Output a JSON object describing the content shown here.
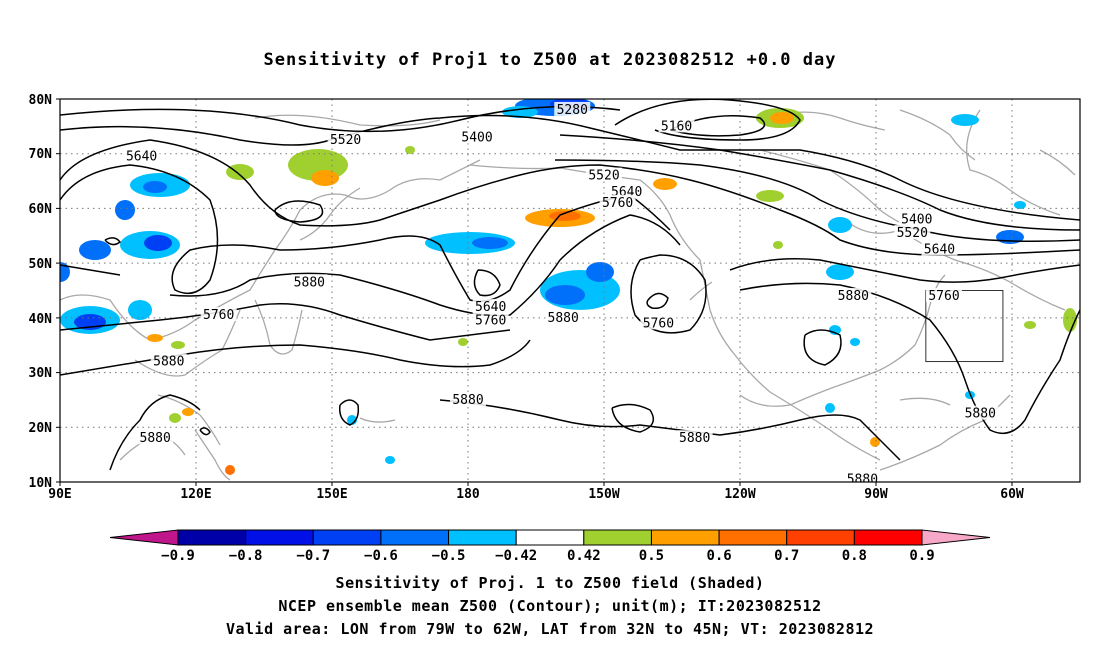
{
  "title": "Sensitivity of Proj1 to Z500 at 2023082512 +0.0 day",
  "lat_labels": [
    "80N",
    "70N",
    "60N",
    "50N",
    "40N",
    "30N",
    "20N",
    "10N"
  ],
  "lon_labels": [
    "90E",
    "120E",
    "150E",
    "180",
    "150W",
    "120W",
    "90W",
    "60W"
  ],
  "contour_labels": [
    {
      "text": "5640",
      "lon": 108,
      "lat": 69.5
    },
    {
      "text": "5520",
      "lon": 153,
      "lat": 72.5
    },
    {
      "text": "5400",
      "lon": -178,
      "lat": 73
    },
    {
      "text": "5280",
      "lon": -157,
      "lat": 78
    },
    {
      "text": "5160",
      "lon": -134,
      "lat": 75
    },
    {
      "text": "5520",
      "lon": -150,
      "lat": 66
    },
    {
      "text": "5640",
      "lon": -145,
      "lat": 63
    },
    {
      "text": "5760",
      "lon": -147,
      "lat": 61
    },
    {
      "text": "5400",
      "lon": -81,
      "lat": 58
    },
    {
      "text": "5520",
      "lon": -82,
      "lat": 55.5
    },
    {
      "text": "5640",
      "lon": -76,
      "lat": 52.5
    },
    {
      "text": "5880",
      "lon": 145,
      "lat": 46.5
    },
    {
      "text": "5760",
      "lon": 125,
      "lat": 40.5
    },
    {
      "text": "5640",
      "lon": -175,
      "lat": 42
    },
    {
      "text": "5760",
      "lon": -175,
      "lat": 39.5
    },
    {
      "text": "5880",
      "lon": -159,
      "lat": 40
    },
    {
      "text": "5760",
      "lon": -138,
      "lat": 39
    },
    {
      "text": "5880",
      "lon": -95,
      "lat": 44
    },
    {
      "text": "5760",
      "lon": -75,
      "lat": 44
    },
    {
      "text": "5880",
      "lon": 114,
      "lat": 32
    },
    {
      "text": "5880",
      "lon": -180,
      "lat": 25
    },
    {
      "text": "5880",
      "lon": -130,
      "lat": 18
    },
    {
      "text": "5880",
      "lon": -67,
      "lat": 22.5
    },
    {
      "text": "5880",
      "lon": 111,
      "lat": 18
    },
    {
      "text": "5880",
      "lon": -93,
      "lat": 10.5
    }
  ],
  "colorbar": {
    "labels": [
      "-0.9",
      "-0.8",
      "-0.7",
      "-0.6",
      "-0.5",
      "-0.42",
      "0.42",
      "0.5",
      "0.6",
      "0.7",
      "0.8",
      "0.9"
    ],
    "colors": [
      "#0000a8",
      "#0010e6",
      "#0040f5",
      "#0070fa",
      "#00c0ff",
      "#ffffff",
      "#a0d030",
      "#ffa000",
      "#ff7000",
      "#ff4000",
      "#ff0000"
    ],
    "low_arrow_color": "#c0168c",
    "high_arrow_color": "#f7a7c8"
  },
  "valid_area": {
    "lon": [
      -79,
      -62
    ],
    "lat": [
      32,
      45
    ]
  },
  "captions": [
    "Sensitivity of Proj. 1 to Z500 field (Shaded)",
    "NCEP ensemble mean Z500 (Contour); unit(m); IT:2023082512",
    "Valid area: LON from 79W to 62W, LAT from 32N to 45N; VT: 2023082812"
  ]
}
